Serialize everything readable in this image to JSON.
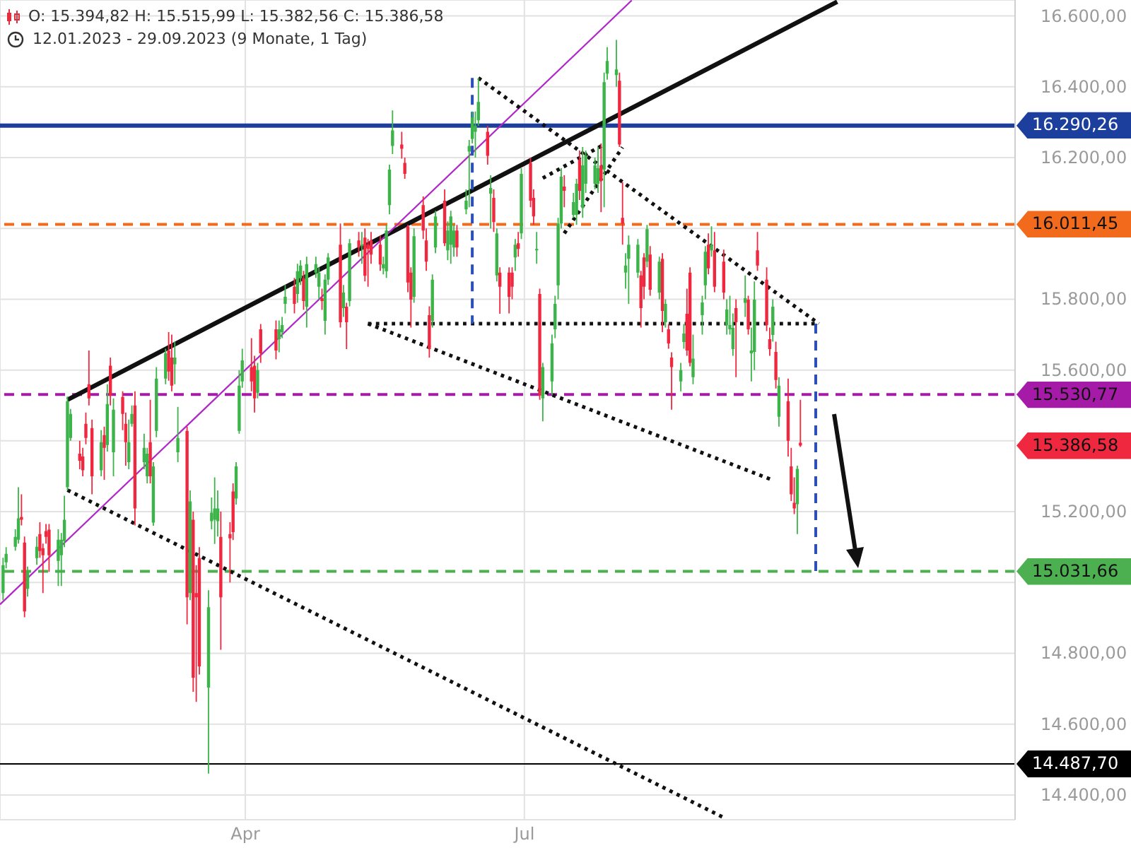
{
  "chart_data": {
    "type": "candlestick",
    "title": "O: 15.394,82 H: 15.515,99 L: 15.382,56 C: 15.386,58",
    "subtitle": "12.01.2023 - 29.09.2023 (9 Monate, 1 Tag)",
    "x": [
      "2023-01-12",
      "2023-01-13",
      "2023-01-16",
      "2023-01-17",
      "2023-01-18",
      "2023-01-19",
      "2023-01-20",
      "2023-01-23",
      "2023-01-24",
      "2023-01-25",
      "2023-01-26",
      "2023-01-27",
      "2023-01-30",
      "2023-01-31",
      "2023-02-01",
      "2023-02-02",
      "2023-02-03",
      "2023-02-06",
      "2023-02-07",
      "2023-02-08",
      "2023-02-09",
      "2023-02-10",
      "2023-02-13",
      "2023-02-14",
      "2023-02-15",
      "2023-02-16",
      "2023-02-17",
      "2023-02-20",
      "2023-02-21",
      "2023-02-22",
      "2023-02-23",
      "2023-02-24",
      "2023-02-27",
      "2023-02-28",
      "2023-03-01",
      "2023-03-02",
      "2023-03-03",
      "2023-03-06",
      "2023-03-07",
      "2023-03-08",
      "2023-03-09",
      "2023-03-10",
      "2023-03-13",
      "2023-03-14",
      "2023-03-15",
      "2023-03-16",
      "2023-03-17",
      "2023-03-20",
      "2023-03-21",
      "2023-03-22",
      "2023-03-23",
      "2023-03-24",
      "2023-03-27",
      "2023-03-28",
      "2023-03-29",
      "2023-03-30",
      "2023-03-31",
      "2023-04-03",
      "2023-04-04",
      "2023-04-05",
      "2023-04-06",
      "2023-04-11",
      "2023-04-12",
      "2023-04-13",
      "2023-04-14",
      "2023-04-17",
      "2023-04-18",
      "2023-04-19",
      "2023-04-20",
      "2023-04-21",
      "2023-04-24",
      "2023-04-25",
      "2023-04-26",
      "2023-04-27",
      "2023-04-28",
      "2023-05-02",
      "2023-05-03",
      "2023-05-04",
      "2023-05-05",
      "2023-05-08",
      "2023-05-09",
      "2023-05-10",
      "2023-05-11",
      "2023-05-12",
      "2023-05-15",
      "2023-05-16",
      "2023-05-17",
      "2023-05-18",
      "2023-05-19",
      "2023-05-22",
      "2023-05-23",
      "2023-05-24",
      "2023-05-25",
      "2023-05-26",
      "2023-05-29",
      "2023-05-30",
      "2023-05-31",
      "2023-06-01",
      "2023-06-02",
      "2023-06-05",
      "2023-06-06",
      "2023-06-07",
      "2023-06-08",
      "2023-06-09",
      "2023-06-12",
      "2023-06-13",
      "2023-06-14",
      "2023-06-15",
      "2023-06-16",
      "2023-06-19",
      "2023-06-20",
      "2023-06-21",
      "2023-06-22",
      "2023-06-23",
      "2023-06-26",
      "2023-06-27",
      "2023-06-28",
      "2023-06-29",
      "2023-06-30",
      "2023-07-03",
      "2023-07-04",
      "2023-07-05",
      "2023-07-06",
      "2023-07-07",
      "2023-07-10",
      "2023-07-11",
      "2023-07-12",
      "2023-07-13",
      "2023-07-14",
      "2023-07-17",
      "2023-07-18",
      "2023-07-19",
      "2023-07-20",
      "2023-07-21",
      "2023-07-24",
      "2023-07-25",
      "2023-07-26",
      "2023-07-27",
      "2023-07-28",
      "2023-07-31",
      "2023-08-01",
      "2023-08-02",
      "2023-08-03",
      "2023-08-04",
      "2023-08-07",
      "2023-08-08",
      "2023-08-09",
      "2023-08-10",
      "2023-08-11",
      "2023-08-14",
      "2023-08-15",
      "2023-08-16",
      "2023-08-17",
      "2023-08-18",
      "2023-08-21",
      "2023-08-22",
      "2023-08-23",
      "2023-08-24",
      "2023-08-25",
      "2023-08-28",
      "2023-08-29",
      "2023-08-30",
      "2023-08-31",
      "2023-09-01",
      "2023-09-04",
      "2023-09-05",
      "2023-09-06",
      "2023-09-07",
      "2023-09-08",
      "2023-09-11",
      "2023-09-12",
      "2023-09-13",
      "2023-09-14",
      "2023-09-15",
      "2023-09-18",
      "2023-09-19",
      "2023-09-20",
      "2023-09-21",
      "2023-09-22",
      "2023-09-25",
      "2023-09-26",
      "2023-09-27",
      "2023-09-28",
      "2023-09-29"
    ],
    "ohlc": [
      [
        14970,
        15070,
        14950,
        15049
      ],
      [
        15057,
        15100,
        15040,
        15081
      ],
      [
        15101,
        15150,
        15090,
        15129
      ],
      [
        15121,
        15269,
        15110,
        15181
      ],
      [
        15185,
        15249,
        15161,
        15177
      ],
      [
        15113,
        15130,
        14902,
        14918
      ],
      [
        14982,
        15045,
        14960,
        15030
      ],
      [
        15069,
        15130,
        15050,
        15101
      ],
      [
        15137,
        15170,
        15070,
        15089
      ],
      [
        15097,
        15110,
        14970,
        15077
      ],
      [
        15145,
        15165,
        15110,
        15129
      ],
      [
        15149,
        15165,
        15030,
        15077
      ],
      [
        15061,
        15150,
        14990,
        15121
      ],
      [
        15077,
        15140,
        14990,
        15121
      ],
      [
        15117,
        15245,
        15100,
        15177
      ],
      [
        15269,
        15525,
        15260,
        15512
      ],
      [
        15408,
        15490,
        15400,
        15476
      ],
      [
        15364,
        15400,
        15320,
        15344
      ],
      [
        15356,
        15380,
        15300,
        15317
      ],
      [
        15448,
        15480,
        15390,
        15408
      ],
      [
        15560,
        15655,
        15500,
        15520
      ],
      [
        15436,
        15460,
        15249,
        15300
      ],
      [
        15317,
        15430,
        15300,
        15396
      ],
      [
        15416,
        15440,
        15290,
        15380
      ],
      [
        15388,
        15560,
        15370,
        15504
      ],
      [
        15612,
        15635,
        15500,
        15528
      ],
      [
        15368,
        15520,
        15300,
        15488
      ],
      [
        15524,
        15540,
        15430,
        15476
      ],
      [
        15448,
        15480,
        15330,
        15396
      ],
      [
        15340,
        15460,
        15320,
        15396
      ],
      [
        15448,
        15500,
        15440,
        15476
      ],
      [
        15500,
        15540,
        15161,
        15209
      ],
      [
        15340,
        15420,
        15320,
        15380
      ],
      [
        15300,
        15380,
        15280,
        15364
      ],
      [
        15396,
        15516,
        15280,
        15300
      ],
      [
        15169,
        15340,
        15160,
        15328
      ],
      [
        15428,
        15608,
        15410,
        15576
      ],
      [
        15576,
        15660,
        15560,
        15647
      ],
      [
        15655,
        15707,
        15570,
        15596
      ],
      [
        15635,
        15700,
        15540,
        15556
      ],
      [
        15616,
        15680,
        15560,
        15635
      ],
      [
        15368,
        15496,
        15340,
        15408
      ],
      [
        15428,
        15440,
        14882,
        14958
      ],
      [
        14970,
        15260,
        14950,
        15229
      ],
      [
        15177,
        15200,
        14691,
        14731
      ],
      [
        14970,
        15049,
        14663,
        14958
      ],
      [
        15069,
        15100,
        14740,
        14763
      ],
      [
        14703,
        14978,
        14460,
        14930
      ],
      [
        15173,
        15240,
        15150,
        15197
      ],
      [
        15177,
        15297,
        15109,
        15209
      ],
      [
        15173,
        15260,
        15130,
        15209
      ],
      [
        15129,
        15200,
        14810,
        14958
      ],
      [
        15137,
        15170,
        15000,
        15125
      ],
      [
        15257,
        15280,
        15120,
        15142
      ],
      [
        15237,
        15340,
        15220,
        15328
      ],
      [
        15428,
        15600,
        15420,
        15556
      ],
      [
        15568,
        15660,
        15550,
        15627
      ],
      [
        15608,
        15690,
        15540,
        15568
      ],
      [
        15612,
        15640,
        15480,
        15520
      ],
      [
        15536,
        15620,
        15520,
        15600
      ],
      [
        15715,
        15730,
        15620,
        15647
      ],
      [
        15715,
        15740,
        15630,
        15655
      ],
      [
        15687,
        15740,
        15650,
        15715
      ],
      [
        15707,
        15750,
        15690,
        15727
      ],
      [
        15787,
        15840,
        15760,
        15807
      ],
      [
        15835,
        15860,
        15760,
        15787
      ],
      [
        15815,
        15900,
        15790,
        15879
      ],
      [
        15859,
        15910,
        15840,
        15895
      ],
      [
        15859,
        15880,
        15770,
        15795
      ],
      [
        15779,
        15920,
        15720,
        15899
      ],
      [
        15875,
        15920,
        15860,
        15899
      ],
      [
        15835,
        15890,
        15800,
        15875
      ],
      [
        15803,
        15830,
        15770,
        15795
      ],
      [
        15739,
        15870,
        15700,
        15855
      ],
      [
        15855,
        15930,
        15840,
        15918
      ],
      [
        15954,
        16014,
        15720,
        15735
      ],
      [
        15775,
        15840,
        15750,
        15819
      ],
      [
        15779,
        15790,
        15659,
        15735
      ],
      [
        15795,
        15970,
        15780,
        15958
      ],
      [
        15966,
        15990,
        15920,
        15946
      ],
      [
        15950,
        15990,
        15900,
        15954
      ],
      [
        15974,
        16000,
        15850,
        15866
      ],
      [
        15954,
        15970,
        15835,
        15942
      ],
      [
        15966,
        15990,
        15900,
        15926
      ],
      [
        15954,
        15980,
        15880,
        15898
      ],
      [
        15887,
        15920,
        15870,
        15899
      ],
      [
        15879,
        16010,
        15860,
        15994
      ],
      [
        16066,
        16180,
        16040,
        16166
      ],
      [
        16233,
        16333,
        16210,
        16277
      ],
      [
        16237,
        16273,
        16197,
        16225
      ],
      [
        16185,
        16200,
        16140,
        16154
      ],
      [
        16006,
        16010,
        15820,
        15847
      ],
      [
        15875,
        15890,
        15720,
        15799
      ],
      [
        15807,
        16000,
        15790,
        15978
      ],
      [
        16066,
        16090,
        15970,
        15994
      ],
      [
        15966,
        16000,
        15880,
        15906
      ],
      [
        15755,
        15780,
        15635,
        15659
      ],
      [
        15739,
        15870,
        15720,
        15855
      ],
      [
        15946,
        16050,
        15930,
        16034
      ],
      [
        16078,
        16110,
        15950,
        15958
      ],
      [
        15938,
        16020,
        15910,
        15994
      ],
      [
        15954,
        16050,
        15900,
        16034
      ],
      [
        15946,
        16010,
        15920,
        15994
      ],
      [
        15994,
        16010,
        15920,
        15946
      ],
      [
        16054,
        16110,
        16040,
        16078
      ],
      [
        16217,
        16250,
        16060,
        16233
      ],
      [
        16253,
        16330,
        16240,
        16313
      ],
      [
        16273,
        16330,
        16200,
        16290
      ],
      [
        16305,
        16425,
        16290,
        16357
      ],
      [
        16273,
        16290,
        16180,
        16205
      ],
      [
        16098,
        16150,
        16000,
        16114
      ],
      [
        16086,
        16110,
        15990,
        16018
      ],
      [
        15867,
        16000,
        15850,
        15986
      ],
      [
        15875,
        15890,
        15759,
        15835
      ],
      [
        15875,
        15890,
        15760,
        15807
      ],
      [
        15875,
        15890,
        15800,
        15835
      ],
      [
        15918,
        15970,
        15880,
        15954
      ],
      [
        15958,
        15990,
        15920,
        15942
      ],
      [
        15986,
        16170,
        15970,
        16154
      ],
      [
        16185,
        16200,
        16060,
        16078
      ],
      [
        16086,
        16110,
        16010,
        16034
      ],
      [
        15938,
        15990,
        15900,
        15942
      ],
      [
        15815,
        15830,
        15516,
        15528
      ],
      [
        15520,
        15620,
        15455,
        15608
      ],
      [
        15568,
        15700,
        15530,
        15675
      ],
      [
        15715,
        15810,
        15690,
        15787
      ],
      [
        15839,
        16030,
        15800,
        16014
      ],
      [
        16014,
        16170,
        16000,
        16146
      ],
      [
        16118,
        16150,
        16060,
        16106
      ],
      [
        16038,
        16100,
        16030,
        16074
      ],
      [
        16038,
        16140,
        16010,
        16126
      ],
      [
        16194,
        16220,
        16080,
        16106
      ],
      [
        16058,
        16230,
        16030,
        16178
      ],
      [
        16126,
        16220,
        16100,
        16205
      ],
      [
        16126,
        16200,
        16110,
        16178
      ],
      [
        16126,
        16230,
        16100,
        16170
      ],
      [
        16178,
        16240,
        16046,
        16134
      ],
      [
        16166,
        16440,
        16060,
        16413
      ],
      [
        16437,
        16512,
        16420,
        16473
      ],
      [
        16433,
        16532,
        16400,
        16449
      ],
      [
        16417,
        16440,
        16230,
        16237
      ],
      [
        16030,
        16130,
        15954,
        16014
      ],
      [
        15875,
        15930,
        15830,
        15895
      ],
      [
        15914,
        15980,
        15787,
        15954
      ],
      [
        15875,
        15970,
        15860,
        15954
      ],
      [
        15867,
        15880,
        15720,
        15775
      ],
      [
        15918,
        15930,
        15800,
        15835
      ],
      [
        15906,
        16010,
        15890,
        15998
      ],
      [
        15926,
        15950,
        15810,
        15827
      ],
      [
        15819,
        15920,
        15800,
        15906
      ],
      [
        15914,
        15930,
        15707,
        15767
      ],
      [
        15735,
        15800,
        15720,
        15787
      ],
      [
        15715,
        15730,
        15660,
        15675
      ],
      [
        15635,
        15650,
        15488,
        15608
      ],
      [
        15568,
        15620,
        15540,
        15600
      ],
      [
        15679,
        15730,
        15660,
        15703
      ],
      [
        15759,
        15830,
        15640,
        15655
      ],
      [
        15875,
        15890,
        15610,
        15620
      ],
      [
        15580,
        15700,
        15560,
        15632
      ],
      [
        15755,
        15810,
        15700,
        15791
      ],
      [
        15839,
        15950,
        15800,
        15934
      ],
      [
        15954,
        15986,
        15870,
        15887
      ],
      [
        15938,
        16006,
        15920,
        15954
      ],
      [
        15938,
        15990,
        15820,
        15835
      ],
      [
        15906,
        15940,
        15800,
        15819
      ],
      [
        15727,
        15800,
        15700,
        15771
      ],
      [
        15715,
        15810,
        15700,
        15727
      ],
      [
        15659,
        15760,
        15640,
        15719
      ],
      [
        15775,
        15800,
        15580,
        15735
      ],
      [
        15790,
        15867,
        15750,
        15803
      ],
      [
        15799,
        15810,
        15700,
        15715
      ],
      [
        15647,
        15720,
        15568,
        15655
      ],
      [
        15651,
        15850,
        15600,
        15799
      ],
      [
        15938,
        15990,
        15880,
        15895
      ],
      [
        15855,
        15890,
        15710,
        15727
      ],
      [
        15687,
        15720,
        15640,
        15659
      ],
      [
        15699,
        15800,
        15680,
        15779
      ],
      [
        15651,
        15680,
        15548,
        15572
      ],
      [
        15468,
        15580,
        15440,
        15556
      ],
      [
        15512,
        15576,
        15356,
        15400
      ],
      [
        15328,
        15380,
        15230,
        15249
      ],
      [
        15225,
        15297,
        15193,
        15209
      ],
      [
        15221,
        15330,
        15137,
        15321
      ],
      [
        15394.82,
        15515.99,
        15382.56,
        15386.58
      ]
    ],
    "colors": [
      "#3cb44a",
      "#3cb44a",
      "#3cb44a",
      "#3cb44a",
      "#f0283f",
      "#f0283f",
      "#3cb44a",
      "#3cb44a",
      "#f0283f",
      "#f0283f",
      "#f0283f",
      "#f0283f",
      "#3cb44a",
      "#3cb44a",
      "#3cb44a",
      "#3cb44a",
      "#3cb44a",
      "#f0283f",
      "#f0283f",
      "#f0283f",
      "#f0283f",
      "#f0283f",
      "#3cb44a",
      "#f0283f",
      "#3cb44a",
      "#f0283f",
      "#3cb44a",
      "#f0283f",
      "#f0283f",
      "#3cb44a",
      "#3cb44a",
      "#f0283f",
      "#3cb44a",
      "#3cb44a",
      "#f0283f",
      "#3cb44a",
      "#3cb44a",
      "#3cb44a",
      "#f0283f",
      "#f0283f",
      "#3cb44a",
      "#3cb44a",
      "#f0283f",
      "#3cb44a",
      "#f0283f",
      "#f0283f",
      "#f0283f",
      "#3cb44a",
      "#3cb44a",
      "#3cb44a",
      "#3cb44a",
      "#f0283f",
      "#f0283f",
      "#f0283f",
      "#3cb44a",
      "#3cb44a",
      "#3cb44a",
      "#f0283f",
      "#f0283f",
      "#3cb44a",
      "#f0283f",
      "#f0283f",
      "#3cb44a",
      "#3cb44a",
      "#3cb44a",
      "#f0283f",
      "#3cb44a",
      "#3cb44a",
      "#f0283f",
      "#3cb44a",
      "#3cb44a",
      "#3cb44a",
      "#f0283f",
      "#3cb44a",
      "#3cb44a",
      "#f0283f",
      "#3cb44a",
      "#f0283f",
      "#3cb44a",
      "#f0283f",
      "#3cb44a",
      "#f0283f",
      "#f0283f",
      "#f0283f",
      "#f0283f",
      "#3cb44a",
      "#3cb44a",
      "#3cb44a",
      "#3cb44a",
      "#f0283f",
      "#f0283f",
      "#f0283f",
      "#f0283f",
      "#3cb44a",
      "#f0283f",
      "#f0283f",
      "#f0283f",
      "#3cb44a",
      "#3cb44a",
      "#f0283f",
      "#3cb44a",
      "#3cb44a",
      "#3cb44a",
      "#f0283f",
      "#3cb44a",
      "#3cb44a",
      "#3cb44a",
      "#3cb44a",
      "#3cb44a",
      "#f0283f",
      "#3cb44a",
      "#f0283f",
      "#3cb44a",
      "#f0283f",
      "#f0283f",
      "#f0283f",
      "#3cb44a",
      "#f0283f",
      "#3cb44a",
      "#f0283f",
      "#f0283f",
      "#3cb44a",
      "#f0283f",
      "#3cb44a",
      "#3cb44a",
      "#3cb44a",
      "#3cb44a",
      "#3cb44a",
      "#f0283f",
      "#3cb44a",
      "#3cb44a",
      "#f0283f",
      "#3cb44a",
      "#3cb44a",
      "#3cb44a",
      "#3cb44a",
      "#f0283f",
      "#3cb44a",
      "#3cb44a",
      "#3cb44a",
      "#f0283f",
      "#f0283f",
      "#3cb44a",
      "#3cb44a",
      "#3cb44a",
      "#f0283f",
      "#f0283f",
      "#3cb44a",
      "#f0283f",
      "#3cb44a",
      "#f0283f",
      "#3cb44a",
      "#f0283f",
      "#f0283f",
      "#3cb44a",
      "#3cb44a",
      "#f0283f",
      "#f0283f",
      "#3cb44a",
      "#3cb44a",
      "#3cb44a",
      "#f0283f",
      "#3cb44a",
      "#f0283f",
      "#f0283f",
      "#3cb44a",
      "#3cb44a",
      "#3cb44a",
      "#f0283f",
      "#3cb44a",
      "#f0283f",
      "#3cb44a",
      "#3cb44a",
      "#f0283f",
      "#f0283f",
      "#f0283f",
      "#3cb44a",
      "#f0283f",
      "#3cb44a",
      "#f0283f",
      "#f0283f",
      "#f0283f",
      "#3cb44a",
      "#f0283f"
    ],
    "series": [
      {
        "type": "line",
        "x": [
          "2023-02-02",
          "2023-10-11"
        ],
        "values": [
          15516,
          16640
        ],
        "color": "#111111",
        "line_style": "solid"
      },
      {
        "type": "line",
        "x": [
          "2023-01-11",
          "2023-08-05"
        ],
        "values": [
          14938,
          16644
        ],
        "color": "#b026c9",
        "line_style": "solid"
      },
      {
        "type": "line",
        "x": [
          "2023-02-02",
          "2023-09-04"
        ],
        "values": [
          15261,
          14336
        ],
        "color": "#111111",
        "line_style": "dotted"
      },
      {
        "type": "line",
        "x": [
          "2023-05-11",
          "2023-09-20"
        ],
        "values": [
          15731,
          15289
        ],
        "color": "#111111",
        "line_style": "dotted"
      },
      {
        "type": "line",
        "x": [
          "2023-05-11",
          "2023-10-05"
        ],
        "values": [
          15731,
          15731
        ],
        "color": "#111111",
        "line_style": "dotted"
      },
      {
        "type": "line",
        "x": [
          "2023-06-16",
          "2023-10-05"
        ],
        "values": [
          16425,
          15731
        ],
        "color": "#111111",
        "line_style": "dotted"
      },
      {
        "type": "line",
        "x": [
          "2023-07-07",
          "2023-07-27"
        ],
        "values": [
          16142,
          16237
        ],
        "color": "#111111",
        "line_style": "dotted"
      },
      {
        "type": "line",
        "x": [
          "2023-07-14",
          "2023-08-02"
        ],
        "values": [
          15986,
          16229
        ],
        "color": "#111111",
        "line_style": "dotted"
      },
      {
        "type": "line",
        "x": [
          "2023-06-14",
          "2023-06-14"
        ],
        "values": [
          16425,
          15731
        ],
        "color": "#2b50b8",
        "line_style": "dashed"
      },
      {
        "type": "line",
        "x": [
          "2023-10-04",
          "2023-10-04"
        ],
        "values": [
          15731,
          15030
        ],
        "color": "#2b50b8",
        "line_style": "dashed"
      }
    ],
    "ref_lines": [
      {
        "axis": "y",
        "value": 16290.26,
        "label": "16.290,26",
        "color": "#1c3f9e",
        "line_style": "solid"
      },
      {
        "axis": "y",
        "value": 16011.45,
        "label": "16.011,45",
        "color": "#f26a1b",
        "line_style": "dashed"
      },
      {
        "axis": "y",
        "value": 15530.77,
        "label": "15.530,77",
        "color": "#a61aa8",
        "line_style": "dashed"
      },
      {
        "axis": "y",
        "value": 15031.66,
        "label": "15.031,66",
        "color": "#4caf50",
        "line_style": "dashed"
      },
      {
        "axis": "y",
        "value": 14487.7,
        "label": "14.487,70",
        "color": "#000000",
        "line_style": "solid"
      }
    ],
    "annotations": [
      "15.386,58"
    ],
    "xlim": [
      "2023-01-11",
      "2023-12-08"
    ],
    "xticks": [
      {
        "value": "2023-04-01",
        "label": "Apr"
      },
      {
        "value": "2023-07-01",
        "label": "Jul"
      }
    ],
    "ylim": [
      14330,
      16645
    ],
    "yticks": [
      {
        "value": 14400,
        "label": "14.400,00"
      },
      {
        "value": 14600,
        "label": "14.600,00"
      },
      {
        "value": 14800,
        "label": "14.800,00"
      },
      {
        "value": 15000,
        "label": null
      },
      {
        "value": 15200,
        "label": "15.200,00"
      },
      {
        "value": 15400,
        "label": null
      },
      {
        "value": 15600,
        "label": "15.600,00"
      },
      {
        "value": 15800,
        "label": "15.800,00"
      },
      {
        "value": 16000,
        "label": null
      },
      {
        "value": 16200,
        "label": "16.200,00"
      },
      {
        "value": 16400,
        "label": "16.400,00"
      },
      {
        "value": 16600,
        "label": "16.600,00"
      }
    ],
    "grid": true
  }
}
